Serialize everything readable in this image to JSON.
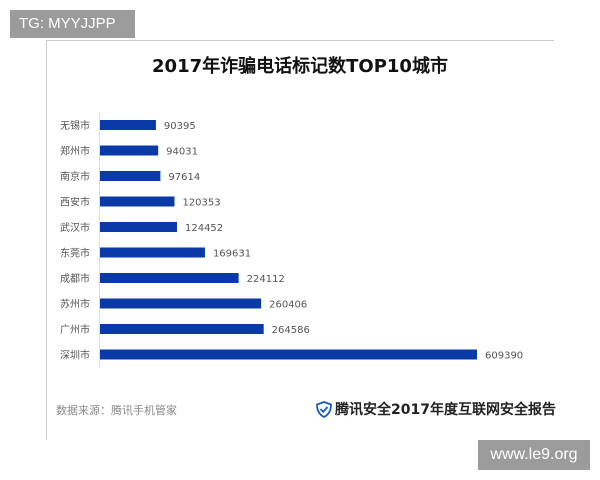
{
  "watermark_top": "TG: MYYJJPP",
  "watermark_bottom": "www.le9.org",
  "source": "数据来源：腾讯手机管家",
  "brand": "腾讯安全2017年度互联网安全报告",
  "brand_icon": "shield-check-icon",
  "chart_data": {
    "type": "bar",
    "orientation": "horizontal",
    "title": "2017年诈骗电话标记数TOP10城市",
    "categories": [
      "无锡市",
      "郑州市",
      "南京市",
      "西安市",
      "武汉市",
      "东莞市",
      "成都市",
      "苏州市",
      "广州市",
      "深圳市"
    ],
    "values": [
      90395,
      94031,
      97614,
      120353,
      124452,
      169631,
      224112,
      260406,
      264586,
      609390
    ],
    "bar_color": "#0a3aa8",
    "grid": false,
    "legend": "none"
  }
}
